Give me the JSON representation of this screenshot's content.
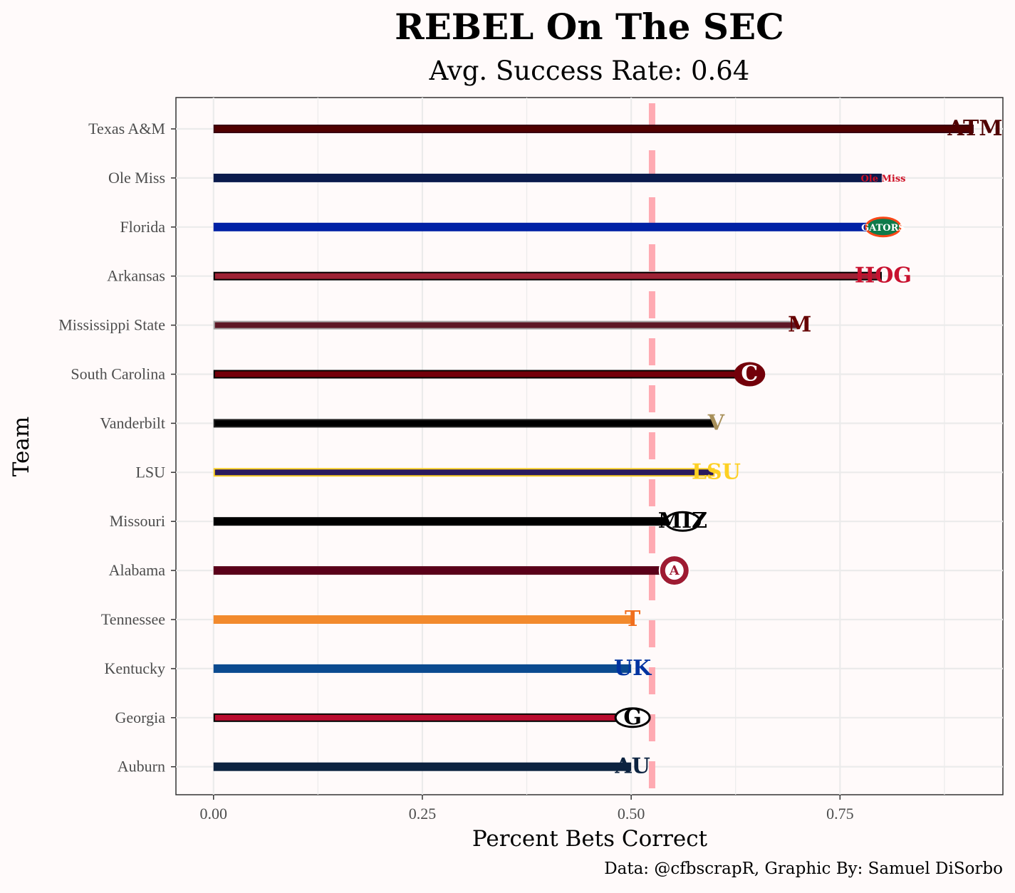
{
  "chart_data": {
    "type": "bar",
    "orientation": "horizontal",
    "title": "REBEL On The SEC",
    "subtitle": "Avg. Success Rate: 0.64",
    "caption": "Data: @cfbscrapR, Graphic By: Samuel DiSorbo",
    "xlabel": "Percent Bets Correct",
    "ylabel": "Team",
    "xlim": [
      -0.045,
      0.945
    ],
    "xticks": [
      0.0,
      0.25,
      0.5,
      0.75
    ],
    "xtick_labels": [
      "0.00",
      "0.25",
      "0.50",
      "0.75"
    ],
    "reference_line": {
      "value": 0.525,
      "style": "dashed",
      "color": "#ffaab2"
    },
    "teams": [
      {
        "name": "Texas A&M",
        "value": 0.91,
        "color": "#500000",
        "outline": "#3a0010",
        "logo_text": "ATM",
        "logo_color": "#500000"
      },
      {
        "name": "Ole Miss",
        "value": 0.8,
        "color": "#0b1b4d",
        "outline": "#0b1b4d",
        "logo_text": "Ole Miss",
        "logo_color": "#ce1126"
      },
      {
        "name": "Florida",
        "value": 0.8,
        "color": "#0021a5",
        "outline": "#0021a5",
        "logo_text": "GATORS",
        "logo_color": "#0f7a4a"
      },
      {
        "name": "Arkansas",
        "value": 0.8,
        "color": "#9d2235",
        "outline": "#000000",
        "logo_text": "HOG",
        "logo_color": "#c8102e"
      },
      {
        "name": "Mississippi State",
        "value": 0.7,
        "color": "#5d1725",
        "outline": "#a5a5a5",
        "logo_text": "M",
        "logo_color": "#660000"
      },
      {
        "name": "South Carolina",
        "value": 0.64,
        "color": "#73000a",
        "outline": "#000000",
        "logo_text": "C",
        "logo_color": "#73000a"
      },
      {
        "name": "Vanderbilt",
        "value": 0.6,
        "color": "#000000",
        "outline": "#222222",
        "logo_text": "V",
        "logo_color": "#a8905a"
      },
      {
        "name": "LSU",
        "value": 0.6,
        "color": "#2a1a5e",
        "outline": "#fdd023",
        "logo_text": "LSU",
        "logo_color": "#fdd023"
      },
      {
        "name": "Missouri",
        "value": 0.56,
        "color": "#000000",
        "outline": "#000000",
        "logo_text": "MIZ",
        "logo_color": "#000000"
      },
      {
        "name": "Alabama",
        "value": 0.55,
        "color": "#5a0019",
        "outline": "#5a0019",
        "logo_text": "A",
        "logo_color": "#9e1b32"
      },
      {
        "name": "Tennessee",
        "value": 0.5,
        "color": "#f28a2d",
        "outline": "#f28a2d",
        "logo_text": "T",
        "logo_color": "#f06e1e"
      },
      {
        "name": "Kentucky",
        "value": 0.5,
        "color": "#0b4a8f",
        "outline": "#0b4a8f",
        "logo_text": "UK",
        "logo_color": "#0033a0"
      },
      {
        "name": "Georgia",
        "value": 0.5,
        "color": "#ba0c2f",
        "outline": "#000000",
        "logo_text": "G",
        "logo_color": "#000000"
      },
      {
        "name": "Auburn",
        "value": 0.5,
        "color": "#0c2340",
        "outline": "#0c2340",
        "logo_text": "AU",
        "logo_color": "#0c2340"
      }
    ]
  }
}
